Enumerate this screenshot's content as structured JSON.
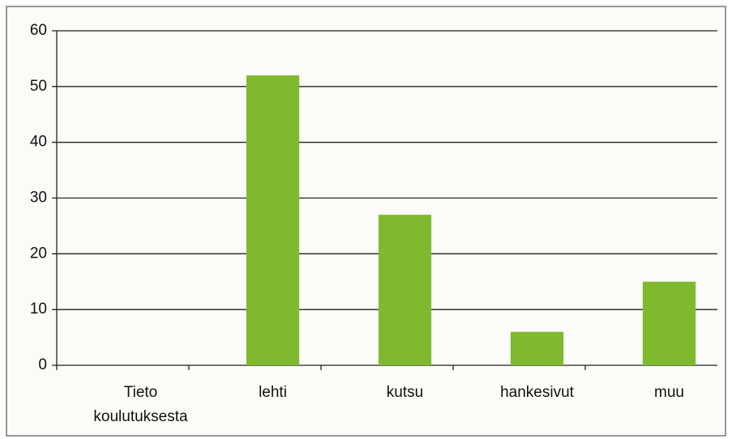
{
  "chart_data": {
    "type": "bar",
    "categories": [
      "Tieto koulutuksesta",
      "lehti",
      "kutsu",
      "hankesivut",
      "muu"
    ],
    "values": [
      0,
      52,
      27,
      6,
      15
    ],
    "color": "#7fba2e",
    "ylim": [
      0,
      60
    ],
    "yticks": [
      0,
      10,
      20,
      30,
      40,
      50,
      60
    ],
    "grid": true
  }
}
